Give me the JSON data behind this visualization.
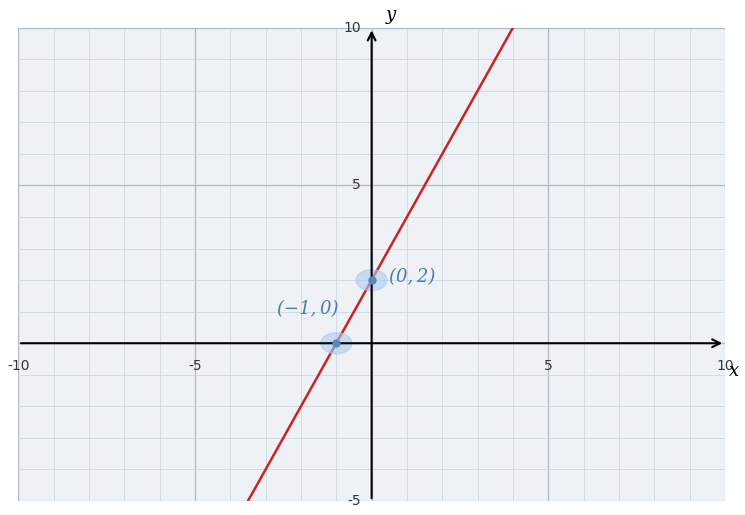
{
  "xlabel": "x",
  "ylabel": "y",
  "xlim": [
    -10,
    10
  ],
  "ylim": [
    -5,
    10
  ],
  "xticks": [
    -10,
    -5,
    5,
    10
  ],
  "yticks": [
    -5,
    5,
    10
  ],
  "xticks_all": [
    -10,
    -5,
    0,
    5,
    10
  ],
  "yticks_all": [
    -5,
    0,
    5,
    10
  ],
  "grid_minor_color": "#d0d8e0",
  "grid_major_color": "#b0b8c8",
  "background_color": "#eef2f7",
  "line_color": "#cc2222",
  "line_width": 1.8,
  "point1": [
    -1,
    0
  ],
  "point2": [
    0,
    2
  ],
  "point_color": "#5588bb",
  "point_halo_color": "#aaccee",
  "label1": "(−1, 0)",
  "label2": "(0, 2)",
  "label_color": "#4a7ab5",
  "label_fontsize": 13,
  "axis_label_fontsize": 13,
  "tick_fontsize": 10,
  "line_x1": -3.5,
  "line_x2": 4.2
}
